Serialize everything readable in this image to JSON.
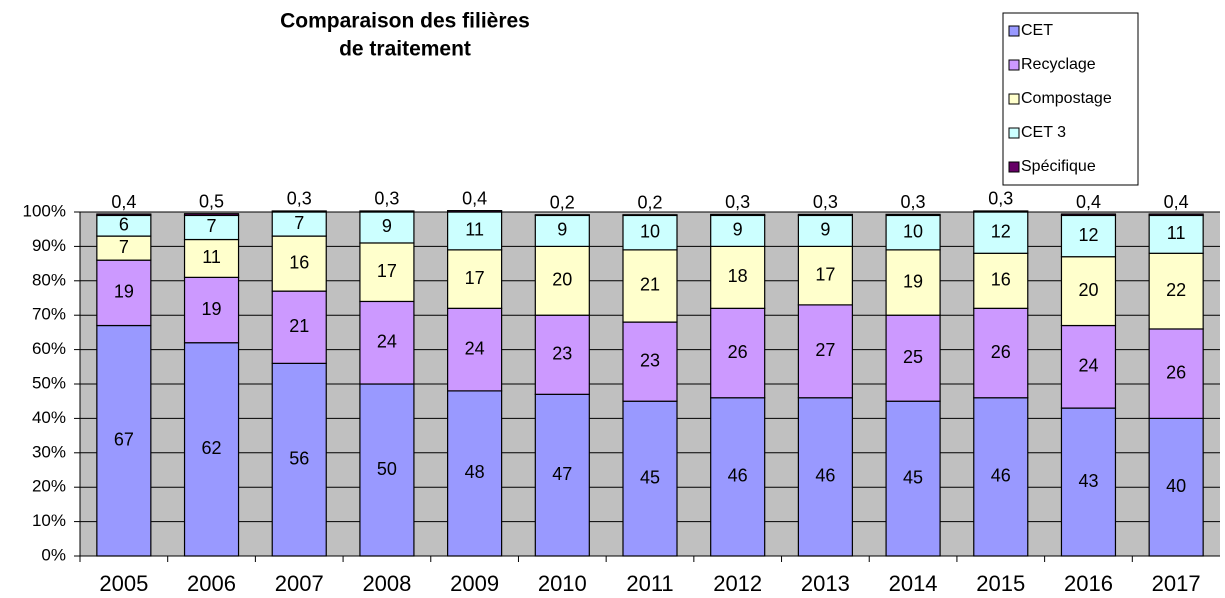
{
  "chart_data": {
    "type": "stacked_bar",
    "title": [
      "Comparaison des filières",
      "de traitement"
    ],
    "categories": [
      "2005",
      "2006",
      "2007",
      "2008",
      "2009",
      "2010",
      "2011",
      "2012",
      "2013",
      "2014",
      "2015",
      "2016",
      "2017"
    ],
    "series": [
      {
        "name": "CET",
        "color": "#9999ff",
        "values": [
          67,
          62,
          56,
          50,
          48,
          47,
          45,
          46,
          46,
          45,
          46,
          43,
          40
        ]
      },
      {
        "name": "Recyclage",
        "color": "#cc99ff",
        "values": [
          19,
          19,
          21,
          24,
          24,
          23,
          23,
          26,
          27,
          25,
          26,
          24,
          26
        ]
      },
      {
        "name": "Compostage",
        "color": "#ffffcc",
        "values": [
          7,
          11,
          16,
          17,
          17,
          20,
          21,
          18,
          17,
          19,
          16,
          20,
          22
        ]
      },
      {
        "name": "CET 3",
        "color": "#ccffff",
        "values": [
          6,
          7,
          7,
          9,
          11,
          9,
          10,
          9,
          9,
          10,
          12,
          12,
          11
        ]
      },
      {
        "name": "Spécifique",
        "color": "#660066",
        "values": [
          0.4,
          0.5,
          0.3,
          0.3,
          0.4,
          0.2,
          0.2,
          0.3,
          0.3,
          0.3,
          0.3,
          0.4,
          0.4
        ],
        "value_labels": [
          "0,4",
          "0,5",
          "0,3",
          "0,3",
          "0,4",
          "0,2",
          "0,2",
          "0,3",
          "0,3",
          "0,3",
          "0,3",
          "0,4",
          "0,4"
        ]
      }
    ],
    "ylim": [
      0,
      100
    ],
    "yticks": [
      {
        "value": 0,
        "label": "0%"
      },
      {
        "value": 10,
        "label": "10%"
      },
      {
        "value": 20,
        "label": "20%"
      },
      {
        "value": 30,
        "label": "30%"
      },
      {
        "value": 40,
        "label": "40%"
      },
      {
        "value": 50,
        "label": "50%"
      },
      {
        "value": 60,
        "label": "60%"
      },
      {
        "value": 70,
        "label": "70%"
      },
      {
        "value": 80,
        "label": "80%"
      },
      {
        "value": 90,
        "label": "90%"
      },
      {
        "value": 100,
        "label": "100%"
      }
    ],
    "grid": true,
    "legend": "top-right"
  }
}
